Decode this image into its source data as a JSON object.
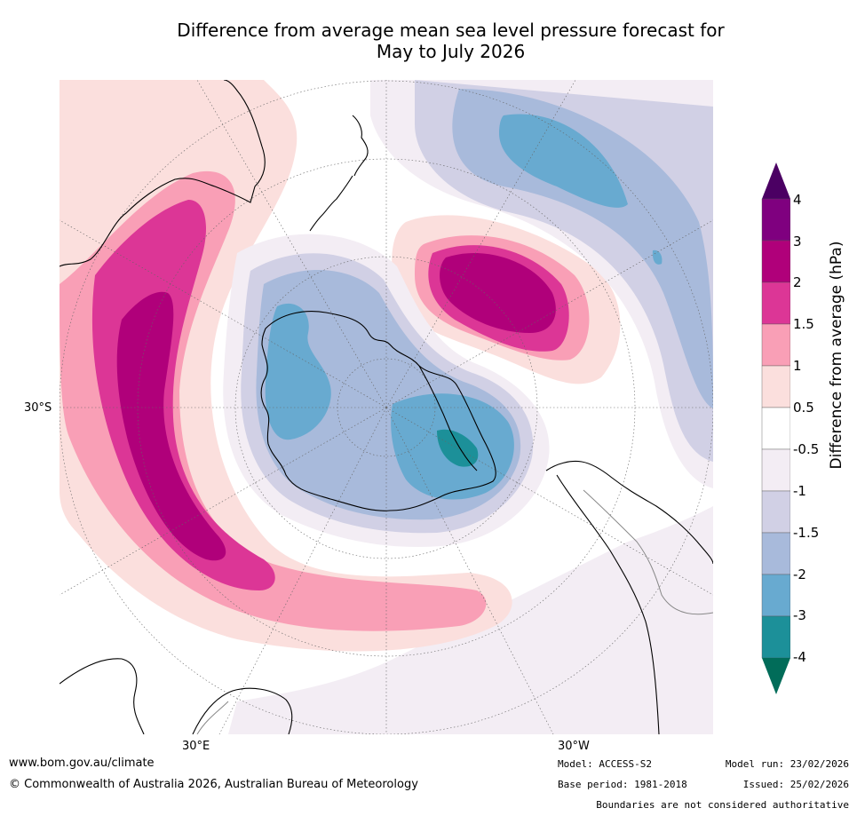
{
  "title_line1": "Difference from average mean sea level pressure forecast for",
  "title_line2": "May to July 2026",
  "map": {
    "projection": "south-polar stereographic",
    "axis_labels": {
      "lat_left": "30°S",
      "lon_bottom_left": "30°E",
      "lon_bottom_right": "30°W"
    }
  },
  "colorbar": {
    "title": "Difference from average (hPa)",
    "ticks": [
      "4",
      "3",
      "2",
      "1.5",
      "1",
      "0.5",
      "-0.5",
      "-1",
      "-1.5",
      "-2",
      "-3",
      "-4"
    ],
    "levels_top_to_bottom": [
      {
        "range": ">4",
        "color": "#4b0063"
      },
      {
        "range": "3 to 4",
        "color": "#7f007f"
      },
      {
        "range": "2 to 3",
        "color": "#b0007a"
      },
      {
        "range": "1.5 to 2",
        "color": "#dc3696"
      },
      {
        "range": "1 to 1.5",
        "color": "#f99fb6"
      },
      {
        "range": "0.5 to 1",
        "color": "#fbdfdd"
      },
      {
        "range": "-0.5 to 0.5",
        "color": "#ffffff"
      },
      {
        "range": "-1 to -0.5",
        "color": "#f3edf4"
      },
      {
        "range": "-1.5 to -1",
        "color": "#d1d0e5"
      },
      {
        "range": "-2 to -1.5",
        "color": "#a8badb"
      },
      {
        "range": "-3 to -2",
        "color": "#68aad0"
      },
      {
        "range": "-4 to -3",
        "color": "#1c9099"
      },
      {
        "range": "<-4",
        "color": "#016c59"
      }
    ]
  },
  "footer": {
    "url": "www.bom.gov.au/climate",
    "copyright": "© Commonwealth of Australia 2026, Australian Bureau of Meteorology",
    "model": "Model: ACCESS-S2",
    "base_period": "Base period: 1981-2018",
    "model_run": "Model run: 23/02/2026",
    "issued": "Issued: 25/02/2026",
    "disclaimer": "Boundaries are not considered authoritative"
  }
}
